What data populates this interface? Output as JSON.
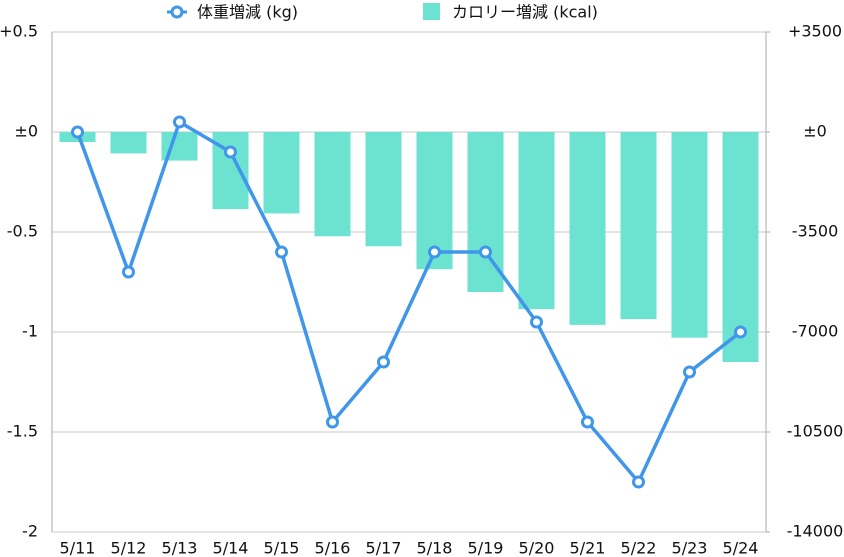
{
  "chart_data": {
    "type": "combo",
    "categories": [
      "5/11",
      "5/12",
      "5/13",
      "5/14",
      "5/15",
      "5/16",
      "5/17",
      "5/18",
      "5/19",
      "5/20",
      "5/21",
      "5/22",
      "5/23",
      "5/24"
    ],
    "series": [
      {
        "name": "体重増減 (kg)",
        "type": "line",
        "axis": "y",
        "color": "#3f96ea",
        "values": [
          0,
          -0.7,
          0.05,
          -0.1,
          -0.6,
          -1.45,
          -1.15,
          -0.6,
          -0.6,
          -0.95,
          -1.45,
          -1.75,
          -1.2,
          -1.0
        ]
      },
      {
        "name": "カロリー増減 (kcal)",
        "type": "bar",
        "axis": "y2",
        "color": "#6ce2d1",
        "values": [
          -350,
          -750,
          -1000,
          -2700,
          -2850,
          -3650,
          -4000,
          -4800,
          -5600,
          -6200,
          -6750,
          -6550,
          -7200,
          -8050
        ]
      }
    ],
    "ylim": [
      -2,
      0.5
    ],
    "yticks": [
      {
        "value": 0.5,
        "label": "+0.5"
      },
      {
        "value": 0,
        "label": "±0"
      },
      -0.5,
      -1,
      -1.5,
      -2
    ],
    "y2lim": [
      -14000,
      3500
    ],
    "y2ticks": [
      {
        "value": 3500,
        "label": "+3500"
      },
      {
        "value": 0,
        "label": "±0"
      },
      -3500,
      -7000,
      -10500,
      -14000
    ],
    "grid": true
  }
}
